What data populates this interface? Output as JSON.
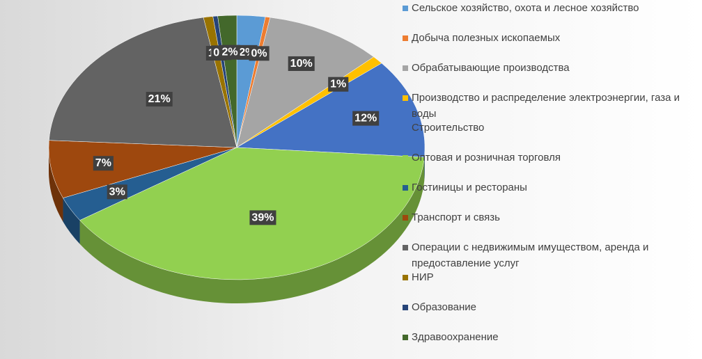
{
  "chart_data": {
    "type": "pie",
    "categories": [
      "Сельское хозяйство, охота и лесное хозяйство",
      "Добыча полезных ископаемых",
      "Обрабатывающие производства",
      "Производство и распределение электроэнергии, газа и воды",
      "Строительство",
      "Оптовая и розничная торговля",
      "Гостиницы и рестораны",
      "Транспорт и связь",
      "Операции с недвижимым имуществом, аренда и предоставление услуг",
      "НИР",
      "Образование",
      "Здравоохранение"
    ],
    "values": [
      2.4,
      0.4,
      10,
      1,
      12,
      39,
      3,
      7,
      21,
      0.8,
      0.4,
      1.6
    ],
    "value_labels": [
      "2%",
      "0%",
      "10%",
      "1%",
      "12%",
      "39%",
      "3%",
      "7%",
      "21%",
      "1%",
      "0%",
      "2%"
    ],
    "colors": [
      "#5b9bd5",
      "#ed7d31",
      "#a5a5a5",
      "#ffc000",
      "#4472c4",
      "#92d050",
      "#255e91",
      "#9e480e",
      "#636363",
      "#997300",
      "#264478",
      "#43682b"
    ],
    "legend": "right"
  }
}
